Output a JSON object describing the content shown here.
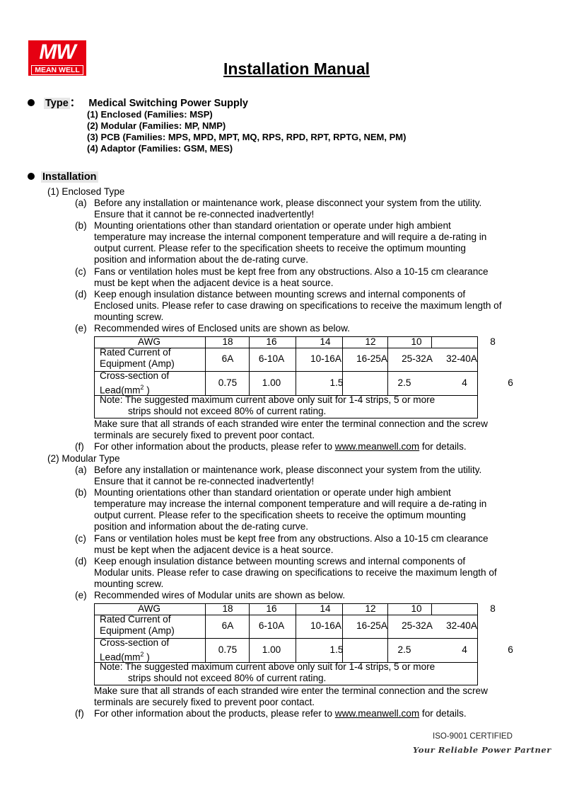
{
  "logo": {
    "mark": "MW",
    "name": "MEAN WELL",
    "color": "#e60012"
  },
  "title": "Installation Manual",
  "type": {
    "label": "Type",
    "colon": "：",
    "value": "Medical Switching Power Supply",
    "items": [
      "(1)  Enclosed (Families: MSP)",
      "(2)  Modular (Families: MP, NMP)",
      "(3)   PCB (Families: MPS, MPD, MPT, MQ, RPS, RPD, RPT, RPTG, NEM, PM)",
      "(4)  Adaptor (Families: GSM, MES)"
    ]
  },
  "installation": {
    "label": "Installation",
    "sections": [
      {
        "heading": "(1)  Enclosed Type",
        "items": [
          {
            "m": "(a)",
            "lines": [
              "Before any installation or maintenance work, please disconnect your system from the utility.",
              "Ensure that it cannot be re-connected inadvertently!"
            ]
          },
          {
            "m": "(b)",
            "lines": [
              "Mounting orientations other than standard orientation or operate under high ambient",
              "temperature may increase the internal component temperature and will require a de-rating in",
              "output current. Please refer to the specification sheets to receive the optimum mounting",
              "position and information about the de-rating curve."
            ]
          },
          {
            "m": "(c)",
            "lines": [
              "Fans or ventilation holes must be kept free from any obstructions. Also a 10-15 cm clearance",
              "must be kept when the adjacent device is a heat source."
            ]
          },
          {
            "m": "(d)",
            "lines": [
              "Keep enough insulation distance between mounting screws and internal components of",
              "Enclosed units. Please refer to case drawing on specifications to receive the maximum length of",
              "mounting screw."
            ]
          },
          {
            "m": "(e)",
            "lines": [
              "Recommended wires of Enclosed units are shown as below."
            ]
          }
        ],
        "after": [
          "Make sure that all strands of each stranded wire enter the terminal connection and the screw",
          "terminals are securely fixed to prevent poor contact."
        ],
        "f": {
          "m": "(f)",
          "pre": "For other information about the products, please refer to ",
          "link": "www.meanwell.com",
          "post": " for details."
        }
      },
      {
        "heading": "(2)  Modular Type",
        "items": [
          {
            "m": "(a)",
            "lines": [
              "Before any installation or maintenance work, please disconnect your system from the utility.",
              "Ensure that it cannot be re-connected inadvertently!"
            ]
          },
          {
            "m": "(b)",
            "lines": [
              "Mounting orientations other than standard orientation or operate under high ambient",
              "temperature may increase the internal component temperature and will require a de-rating in",
              "output current. Please refer to the specification sheets to receive the optimum mounting",
              "position and information about the de-rating curve."
            ]
          },
          {
            "m": "(c)",
            "lines": [
              "Fans or ventilation holes must be kept free from any obstructions. Also a 10-15 cm clearance",
              "must be kept when the adjacent device is a heat source."
            ]
          },
          {
            "m": "(d)",
            "lines": [
              "Keep enough insulation distance between mounting screws and internal components of",
              "Modular units. Please refer to case drawing on specifications to receive the maximum length of",
              "mounting screw."
            ]
          },
          {
            "m": "(e)",
            "lines": [
              "Recommended wires of Modular units are shown as below."
            ]
          }
        ],
        "after": [
          "Make sure that all strands of each stranded wire enter the terminal connection and the screw",
          "terminals are securely fixed to prevent poor contact."
        ],
        "f": {
          "m": "(f)",
          "pre": "For other information about the products, please refer to ",
          "link": "www.meanwell.com",
          "post": " for details."
        }
      }
    ]
  },
  "wire_table": {
    "awg_label": "AWG",
    "awg": [
      "18",
      "16",
      "14",
      "12",
      "10",
      "8"
    ],
    "current_label": [
      "Rated Current of",
      "Equipment (Amp)"
    ],
    "current": [
      "6A",
      "6-10A",
      "10-16A",
      "16-25A",
      "25-32A",
      "32-40A"
    ],
    "section_label": [
      "Cross-section of",
      "Lead(mm"
    ],
    "section_sup": "2",
    "section_close": " )",
    "section": [
      "0.75",
      "1.00",
      "1.5",
      "2.5",
      "4",
      "6"
    ],
    "note": [
      "Note: The suggested maximum current above only suit for 1-4 strips, 5 or more",
      "strips should not exceed 80% of current rating."
    ]
  },
  "footer": {
    "cert": "ISO-9001 CERTIFIED",
    "slogan": "Your Reliable Power Partner"
  }
}
